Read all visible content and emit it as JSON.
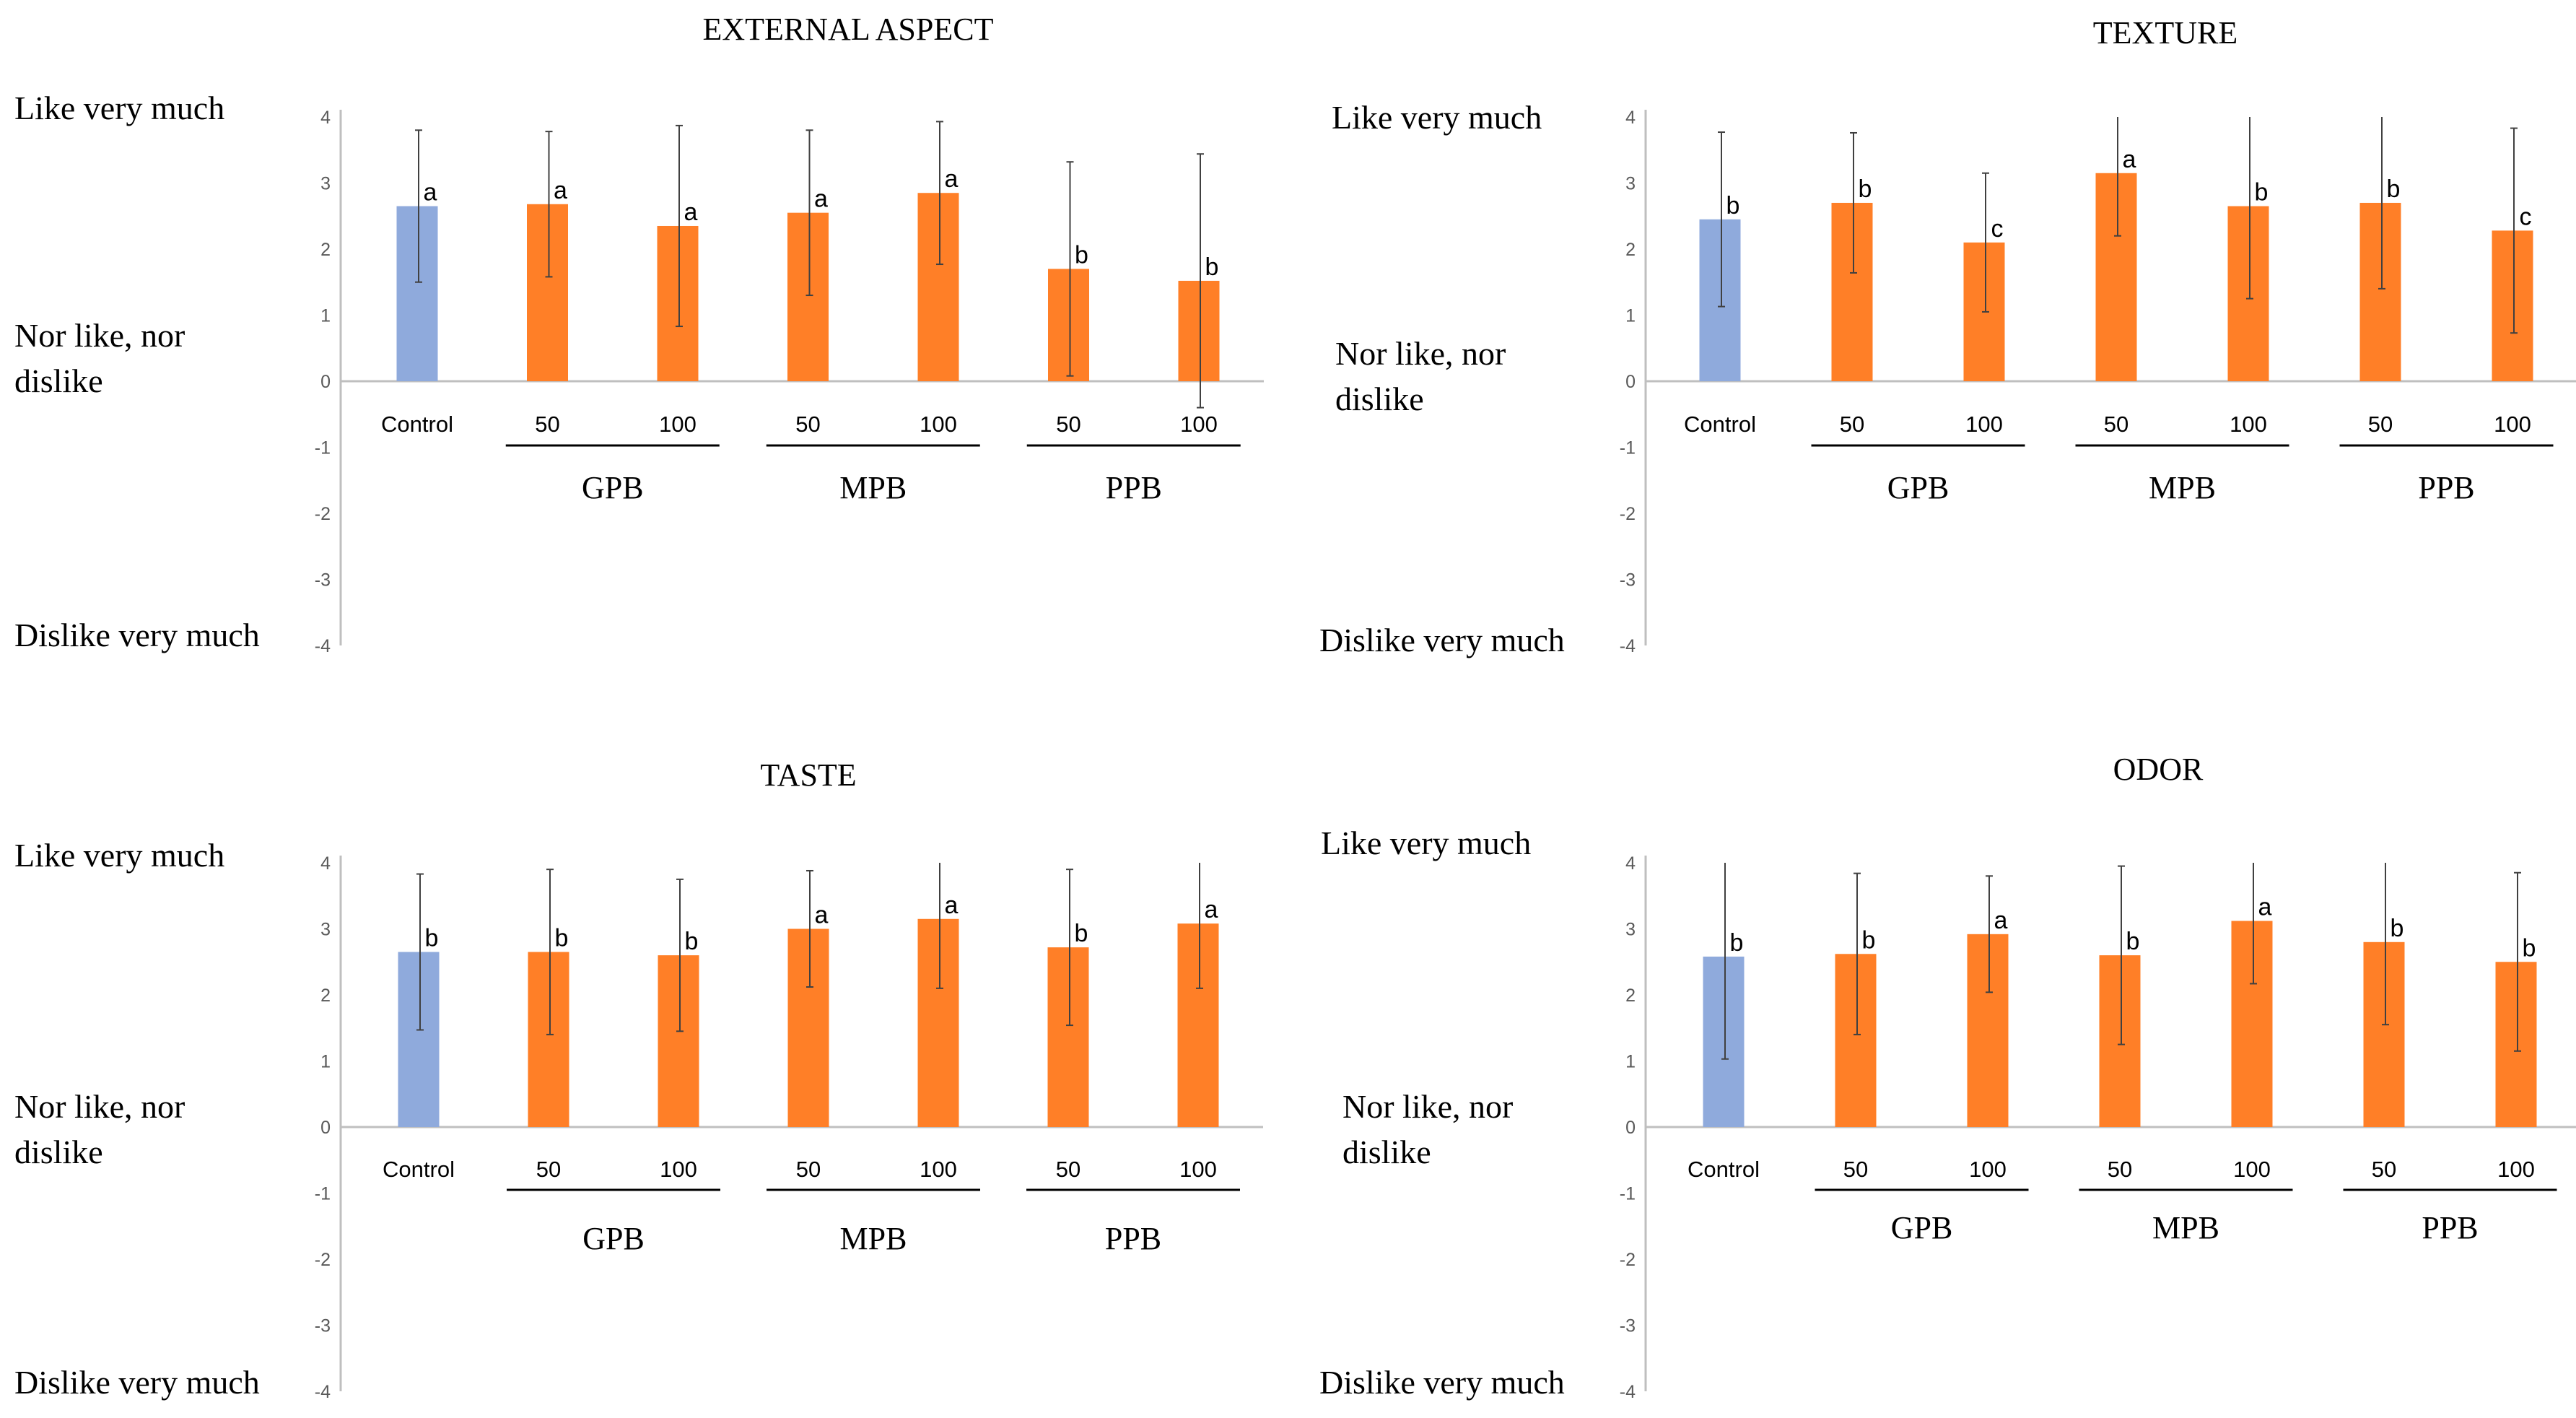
{
  "chart_data": [
    {
      "type": "bar",
      "title": "EXTERNAL ASPECT",
      "categories": [
        "Control",
        "50",
        "100",
        "50",
        "100",
        "50",
        "100"
      ],
      "groups": [
        {
          "label": "GPB",
          "members": [
            1,
            2
          ]
        },
        {
          "label": "MPB",
          "members": [
            3,
            4
          ]
        },
        {
          "label": "PPB",
          "members": [
            5,
            6
          ]
        }
      ],
      "values": [
        2.65,
        2.68,
        2.35,
        2.55,
        2.85,
        1.7,
        1.52
      ],
      "errors": [
        1.15,
        1.1,
        1.52,
        1.25,
        1.08,
        1.62,
        1.92
      ],
      "letters": [
        "a",
        "a",
        "a",
        "a",
        "a",
        "b",
        "b"
      ],
      "colors": [
        "#8faadc",
        "#ff7f27",
        "#ff7f27",
        "#ff7f27",
        "#ff7f27",
        "#ff7f27",
        "#ff7f27"
      ],
      "ylim": [
        -4,
        4
      ],
      "yticks": [
        "-4",
        "-3",
        "-2",
        "-1",
        "0",
        "1",
        "2",
        "3",
        "4"
      ],
      "scale_labels": [
        "Like very much",
        "Nor like, nor\ndislike",
        "Dislike very much"
      ]
    },
    {
      "type": "bar",
      "title": "TEXTURE",
      "categories": [
        "Control",
        "50",
        "100",
        "50",
        "100",
        "50",
        "100"
      ],
      "groups": [
        {
          "label": "GPB",
          "members": [
            1,
            2
          ]
        },
        {
          "label": "MPB",
          "members": [
            3,
            4
          ]
        },
        {
          "label": "PPB",
          "members": [
            5,
            6
          ]
        }
      ],
      "values": [
        2.45,
        2.7,
        2.1,
        3.15,
        2.65,
        2.7,
        2.28
      ],
      "errors": [
        1.32,
        1.06,
        1.05,
        0.95,
        1.4,
        1.3,
        1.55
      ],
      "letters": [
        "b",
        "b",
        "c",
        "a",
        "b",
        "b",
        "c"
      ],
      "colors": [
        "#8faadc",
        "#ff7f27",
        "#ff7f27",
        "#ff7f27",
        "#ff7f27",
        "#ff7f27",
        "#ff7f27"
      ],
      "ylim": [
        -4,
        4
      ],
      "yticks": [
        "-4",
        "-3",
        "-2",
        "-1",
        "0",
        "1",
        "2",
        "3",
        "4"
      ],
      "scale_labels": [
        "Like very much",
        "Nor like, nor\ndislike",
        "Dislike very much"
      ]
    },
    {
      "type": "bar",
      "title": "TASTE",
      "categories": [
        "Control",
        "50",
        "100",
        "50",
        "100",
        "50",
        "100"
      ],
      "groups": [
        {
          "label": "GPB",
          "members": [
            1,
            2
          ]
        },
        {
          "label": "MPB",
          "members": [
            3,
            4
          ]
        },
        {
          "label": "PPB",
          "members": [
            5,
            6
          ]
        }
      ],
      "values": [
        2.65,
        2.65,
        2.6,
        3.0,
        3.15,
        2.72,
        3.08
      ],
      "errors": [
        1.18,
        1.25,
        1.15,
        0.88,
        1.05,
        1.18,
        0.98
      ],
      "letters": [
        "b",
        "b",
        "b",
        "a",
        "a",
        "b",
        "a"
      ],
      "colors": [
        "#8faadc",
        "#ff7f27",
        "#ff7f27",
        "#ff7f27",
        "#ff7f27",
        "#ff7f27",
        "#ff7f27"
      ],
      "ylim": [
        -4,
        4
      ],
      "yticks": [
        "-4",
        "-3",
        "-2",
        "-1",
        "0",
        "1",
        "2",
        "3",
        "4"
      ],
      "scale_labels": [
        "Like very much",
        "Nor like, nor\ndislike",
        "Dislike very much"
      ]
    },
    {
      "type": "bar",
      "title": "ODOR",
      "categories": [
        "Control",
        "50",
        "100",
        "50",
        "100",
        "50",
        "100"
      ],
      "groups": [
        {
          "label": "GPB",
          "members": [
            1,
            2
          ]
        },
        {
          "label": "MPB",
          "members": [
            3,
            4
          ]
        },
        {
          "label": "PPB",
          "members": [
            5,
            6
          ]
        }
      ],
      "values": [
        2.58,
        2.62,
        2.92,
        2.6,
        3.12,
        2.8,
        2.5
      ],
      "errors": [
        1.55,
        1.22,
        0.88,
        1.35,
        0.95,
        1.25,
        1.35
      ],
      "letters": [
        "b",
        "b",
        "a",
        "b",
        "a",
        "b",
        "b"
      ],
      "colors": [
        "#8faadc",
        "#ff7f27",
        "#ff7f27",
        "#ff7f27",
        "#ff7f27",
        "#ff7f27",
        "#ff7f27"
      ],
      "ylim": [
        -4,
        4
      ],
      "yticks": [
        "-4",
        "-3",
        "-2",
        "-1",
        "0",
        "1",
        "2",
        "3",
        "4"
      ],
      "scale_labels": [
        "Like very much",
        "Nor like, nor\ndislike",
        "Dislike very much"
      ]
    }
  ]
}
